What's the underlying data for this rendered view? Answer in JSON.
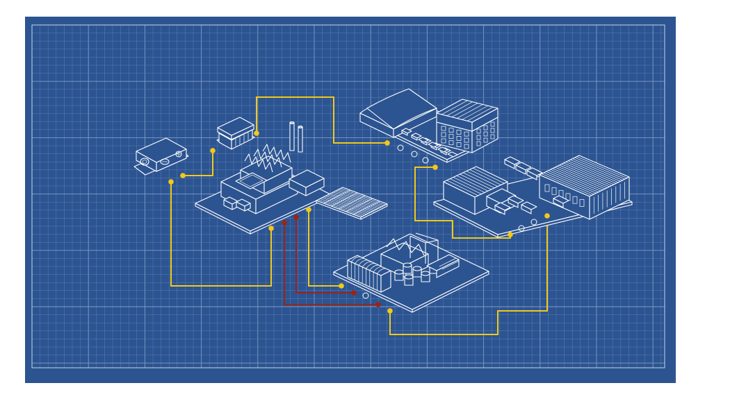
{
  "colors": {
    "paper": "#2c5491",
    "grid": "#5d7fb5",
    "line_art": "#ffffff",
    "yellow_connector": "#f2c919",
    "red_connector": "#9b2515"
  },
  "nodes": [
    {
      "id": "control-box",
      "icon": "control-unit-icon"
    },
    {
      "id": "guard-booth",
      "icon": "booth-icon"
    },
    {
      "id": "factory",
      "icon": "factory-icon"
    },
    {
      "id": "solar-panels",
      "icon": "solar-panel-icon"
    },
    {
      "id": "office-parking",
      "icon": "office-building-icon"
    },
    {
      "id": "warehouse-complex",
      "icon": "warehouse-icon"
    },
    {
      "id": "processing-plant",
      "icon": "processing-plant-icon"
    }
  ],
  "connections": [
    {
      "from": "control-box",
      "to": "guard-booth",
      "color": "yellow"
    },
    {
      "from": "guard-booth",
      "to": "office-parking",
      "color": "yellow"
    },
    {
      "from": "office-parking",
      "to": "warehouse-complex",
      "color": "yellow"
    },
    {
      "from": "control-box",
      "to": "factory",
      "color": "yellow"
    },
    {
      "from": "factory",
      "to": "processing-plant",
      "color": "yellow"
    },
    {
      "from": "factory",
      "to": "processing-plant",
      "color": "red"
    },
    {
      "from": "factory",
      "to": "processing-plant",
      "color": "red"
    },
    {
      "from": "processing-plant",
      "to": "warehouse-complex",
      "color": "yellow"
    }
  ]
}
